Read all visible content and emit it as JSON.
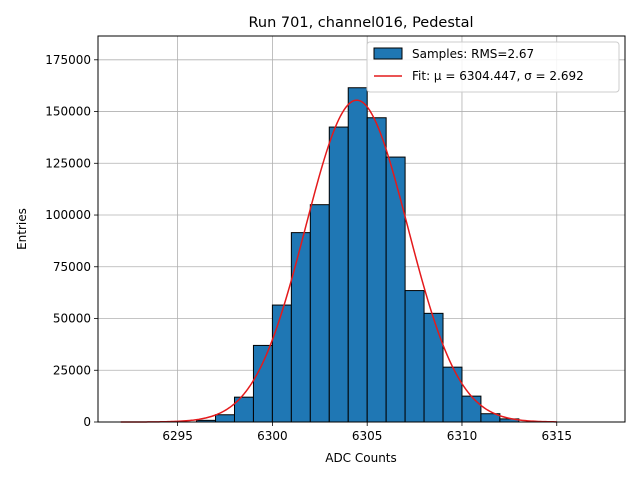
{
  "chart_data": {
    "type": "bar",
    "title": "Run 701, channel016, Pedestal",
    "xlabel": "ADC Counts",
    "ylabel": "Entries",
    "xlim": [
      6290.8,
      6318.6
    ],
    "ylim": [
      0,
      186500
    ],
    "x_ticks": [
      6295,
      6300,
      6305,
      6310,
      6315
    ],
    "y_ticks": [
      0,
      25000,
      50000,
      75000,
      100000,
      125000,
      150000,
      175000
    ],
    "grid": true,
    "legend_position": "top-right",
    "bar_color": "#1f77b4",
    "fit_color": "#e41a1c",
    "bins": {
      "left_edges": [
        6296,
        6297,
        6298,
        6299,
        6300,
        6301,
        6302,
        6303,
        6304,
        6305,
        6306,
        6307,
        6308,
        6309,
        6310,
        6311,
        6312
      ],
      "width": 1,
      "counts": [
        800,
        3500,
        12000,
        37000,
        56500,
        91500,
        105000,
        142500,
        161500,
        147000,
        128000,
        63500,
        52500,
        26500,
        12500,
        4000,
        1500
      ]
    },
    "fit": {
      "mu": 6304.447,
      "sigma": 2.692,
      "amplitude": 155500,
      "x_range": [
        6292,
        6315
      ]
    },
    "legend": [
      {
        "type": "patch",
        "label": "Samples: RMS=2.67"
      },
      {
        "type": "line",
        "label": "Fit: μ = 6304.447, σ = 2.692"
      }
    ]
  }
}
